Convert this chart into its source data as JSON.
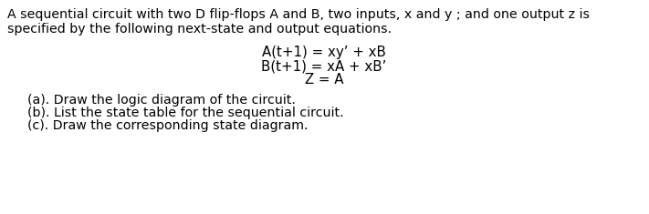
{
  "background_color": "#ffffff",
  "p1l1": "A sequential circuit with two D flip-flops A and B, two inputs, x and y ; and one output z is",
  "p1l2": "specified by the following next-state and output equations.",
  "eq1": "A(t+1) = xy’ + xB",
  "eq2": "B(t+1) = xA + xB’",
  "eq3": "Z = A",
  "part_a": "(a). Draw the logic diagram of the circuit.",
  "part_b": "(b). List the state table for the sequential circuit.",
  "part_c": "(c). Draw the corresponding state diagram.",
  "font_size_body": 10.2,
  "font_size_eq": 10.8,
  "font_family": "Times New Roman"
}
